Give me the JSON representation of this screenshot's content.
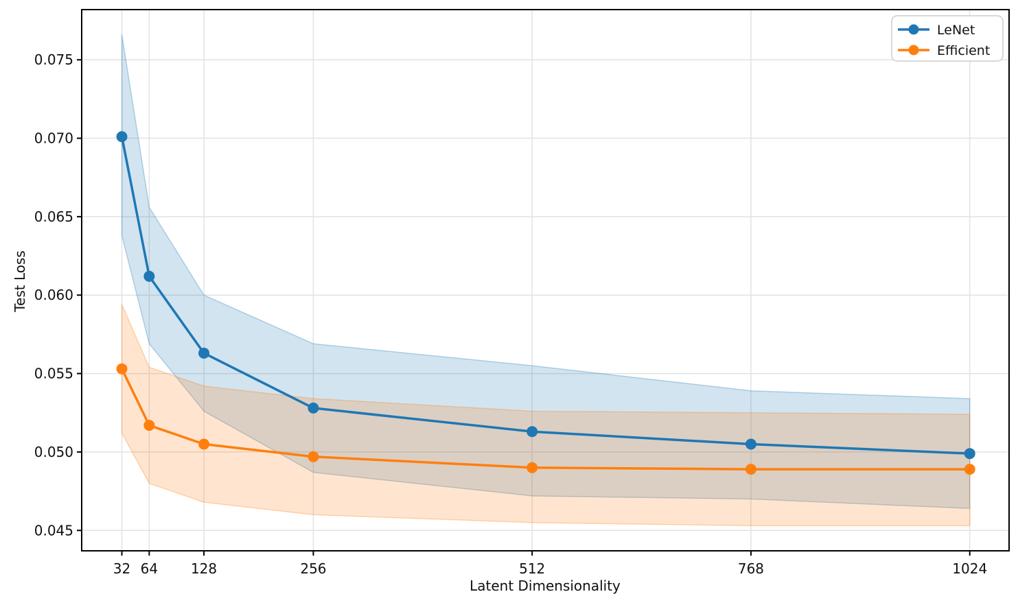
{
  "chart_data": {
    "type": "line",
    "title": "",
    "xlabel": "Latent Dimensionality",
    "ylabel": "Test Loss",
    "x": [
      32,
      64,
      128,
      256,
      512,
      768,
      1024
    ],
    "series": [
      {
        "name": "LeNet",
        "color": "#1f77b4",
        "mean": [
          0.0701,
          0.0612,
          0.0563,
          0.0528,
          0.0513,
          0.0505,
          0.0499
        ],
        "band_upper": [
          0.0766,
          0.0656,
          0.06,
          0.0569,
          0.0555,
          0.0539,
          0.0534
        ],
        "band_lower": [
          0.0638,
          0.0569,
          0.0526,
          0.0487,
          0.0472,
          0.047,
          0.0464
        ]
      },
      {
        "name": "Efficient",
        "color": "#ff7f0e",
        "mean": [
          0.0553,
          0.0517,
          0.0505,
          0.0497,
          0.049,
          0.0489,
          0.0489
        ],
        "band_upper": [
          0.0594,
          0.0554,
          0.0542,
          0.0534,
          0.0526,
          0.0525,
          0.0524
        ],
        "band_lower": [
          0.0512,
          0.048,
          0.0468,
          0.046,
          0.0455,
          0.0453,
          0.0453
        ]
      }
    ],
    "band_alpha": 0.2,
    "xlim": [
      -15,
      1070
    ],
    "ylim": [
      0.0437,
      0.0782
    ],
    "xticks": [
      32,
      64,
      128,
      256,
      512,
      768,
      1024
    ],
    "xtick_labels": [
      "32",
      "64",
      "128",
      "256",
      "512",
      "768",
      "1024"
    ],
    "yticks": [
      0.045,
      0.05,
      0.055,
      0.06,
      0.065,
      0.07,
      0.075
    ],
    "ytick_labels": [
      "0.045",
      "0.050",
      "0.055",
      "0.060",
      "0.065",
      "0.070",
      "0.075"
    ],
    "grid": true,
    "grid_color": "#e2e2e2",
    "spine_color": "#000000",
    "legend": {
      "position": "upper right",
      "entries": [
        "LeNet",
        "Efficient"
      ]
    }
  }
}
